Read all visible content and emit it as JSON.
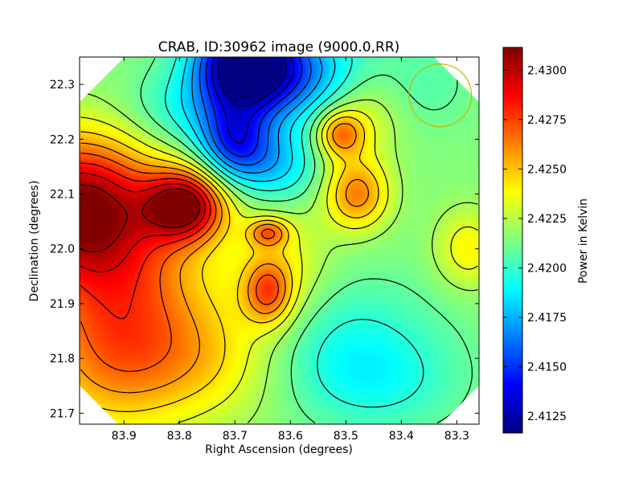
{
  "chart_data": {
    "type": "heatmap",
    "title": "CRAB, ID:30962 image (9000.0,RR)",
    "xlabel": "Right Ascension (degrees)",
    "ylabel": "Declination (degrees)",
    "xlim": [
      83.98,
      83.26
    ],
    "ylim": [
      21.68,
      22.35
    ],
    "x_inverted": true,
    "x_ticks": [
      "83.9",
      "83.8",
      "83.7",
      "83.6",
      "83.5",
      "83.4",
      "83.3"
    ],
    "x_tick_values": [
      83.9,
      83.8,
      83.7,
      83.6,
      83.5,
      83.4,
      83.3
    ],
    "y_ticks": [
      "21.7",
      "21.8",
      "21.9",
      "22.0",
      "22.1",
      "22.2",
      "22.3"
    ],
    "y_tick_values": [
      21.7,
      21.8,
      21.9,
      22.0,
      22.1,
      22.2,
      22.3
    ],
    "colormap": "jet",
    "colorbar": {
      "label": "Power in Kelvin",
      "range": [
        2.41165,
        2.43115
      ],
      "ticks": [
        "2.4125",
        "2.4150",
        "2.4175",
        "2.4200",
        "2.4225",
        "2.4250",
        "2.4275",
        "2.4300"
      ],
      "tick_values": [
        2.4125,
        2.415,
        2.4175,
        2.42,
        2.4225,
        2.425,
        2.4275,
        2.43
      ]
    },
    "background_level": 2.4215,
    "features": [
      {
        "kind": "min",
        "ra": 83.68,
        "dec": 22.34,
        "value": 2.412
      },
      {
        "kind": "min",
        "ra": 83.7,
        "dec": 22.19,
        "value": 2.4155
      },
      {
        "kind": "min",
        "ra": 83.5,
        "dec": 21.83,
        "value": 2.4195
      },
      {
        "kind": "max",
        "ra": 83.98,
        "dec": 22.08,
        "value": 2.4305
      },
      {
        "kind": "max",
        "ra": 83.79,
        "dec": 22.08,
        "value": 2.43
      },
      {
        "kind": "max",
        "ra": 83.92,
        "dec": 21.8,
        "value": 2.4255
      },
      {
        "kind": "max",
        "ra": 83.48,
        "dec": 22.1,
        "value": 2.4262
      },
      {
        "kind": "max",
        "ra": 83.51,
        "dec": 22.21,
        "value": 2.426
      },
      {
        "kind": "max",
        "ra": 83.64,
        "dec": 21.92,
        "value": 2.4258
      },
      {
        "kind": "max",
        "ra": 83.64,
        "dec": 22.03,
        "value": 2.4255
      },
      {
        "kind": "max",
        "ra": 83.28,
        "dec": 22.0,
        "value": 2.424
      }
    ],
    "beam_circle": {
      "ra": 83.33,
      "dec": 22.28,
      "color": "#c8b400"
    },
    "image_region": "clipped octagon (corners outside the map are white)"
  }
}
